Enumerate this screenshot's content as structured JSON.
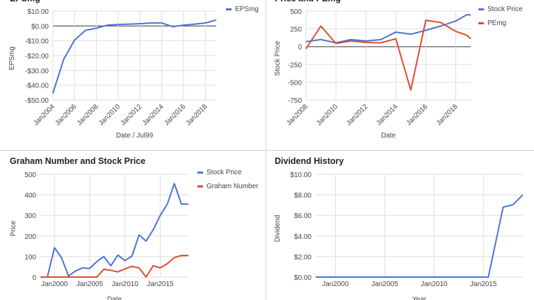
{
  "colors": {
    "blue": "#4a72d4",
    "red": "#dc4a2e",
    "grid": "#dddddd",
    "zero": "#333333",
    "text": "#444444",
    "title": "#222222"
  },
  "chart_data": [
    {
      "id": "eps",
      "type": "line",
      "title": "EPSmg",
      "xlabel": "Date / Jul99",
      "ylabel": "EPSmg",
      "ylim": [
        -50,
        10
      ],
      "xlim": [
        2004,
        2019
      ],
      "ytick_values": [
        -50,
        -40,
        -30,
        -20,
        -10,
        0,
        10
      ],
      "ytick_labels": [
        "-$50.00",
        "-$40.00",
        "-$30.00",
        "-$20.00",
        "-$10.00",
        "$0.00",
        "$10.00"
      ],
      "xtick_values": [
        2004,
        2006,
        2008,
        2010,
        2012,
        2014,
        2016,
        2018
      ],
      "xtick_labels": [
        "Jan2004",
        "Jan2006",
        "Jan2008",
        "Jan2010",
        "Jan2012",
        "Jan2014",
        "Jan2016",
        "Jan2018"
      ],
      "legend": "right",
      "series": [
        {
          "name": "EPSmg",
          "color": "blue",
          "x": [
            2004,
            2005,
            2006,
            2007,
            2008,
            2009,
            2010,
            2011,
            2012,
            2013,
            2014,
            2015,
            2016,
            2017,
            2018,
            2019
          ],
          "values": [
            -45.5,
            -22.5,
            -9.5,
            -3,
            -1.5,
            0.5,
            1,
            1.2,
            1.5,
            2,
            2,
            -0.5,
            0.5,
            1.2,
            2,
            4
          ]
        }
      ]
    },
    {
      "id": "price_pe",
      "type": "line",
      "title": "Price and PEmg",
      "xlabel": "Date",
      "ylabel": "Stock Price",
      "ylim": [
        -750,
        500
      ],
      "xlim": [
        2008,
        2019
      ],
      "ytick_values": [
        -750,
        -500,
        -250,
        0,
        250,
        500
      ],
      "ytick_labels": [
        "-750",
        "-500",
        "-250",
        "0",
        "250",
        "500"
      ],
      "xtick_values": [
        2008,
        2010,
        2012,
        2014,
        2016,
        2018
      ],
      "xtick_labels": [
        "Jan2008",
        "Jan2010",
        "Jan2012",
        "Jan2014",
        "Jan2016",
        "Jan2018"
      ],
      "legend": "right",
      "series": [
        {
          "name": "Stock Price",
          "color": "blue",
          "x": [
            2008,
            2009,
            2010,
            2011,
            2012,
            2013,
            2014,
            2015,
            2016,
            2017,
            2018,
            2018.75,
            2019
          ],
          "values": [
            70,
            100,
            55,
            100,
            80,
            100,
            205,
            175,
            230,
            290,
            360,
            450,
            445
          ]
        },
        {
          "name": "PEmg",
          "color": "red",
          "x": [
            2008,
            2009,
            2010,
            2011,
            2012,
            2013,
            2014,
            2015,
            2016,
            2017,
            2018,
            2018.75,
            2019
          ],
          "values": [
            -30,
            290,
            45,
            80,
            60,
            55,
            110,
            -610,
            370,
            340,
            215,
            160,
            110
          ]
        }
      ]
    },
    {
      "id": "graham",
      "type": "line",
      "title": "Graham Number and Stock Price",
      "xlabel": "Date",
      "ylabel": "Price",
      "ylim": [
        0,
        500
      ],
      "xlim": [
        1998,
        2019
      ],
      "ytick_values": [
        0,
        100,
        200,
        300,
        400,
        500
      ],
      "ytick_labels": [
        "0",
        "100",
        "200",
        "300",
        "400",
        "500"
      ],
      "xtick_values": [
        2000,
        2005,
        2010,
        2015
      ],
      "xtick_labels": [
        "Jan2000",
        "Jan2005",
        "Jan2010",
        "Jan2015"
      ],
      "legend": "right",
      "series": [
        {
          "name": "Stock Price",
          "color": "blue",
          "x": [
            1998,
            1999,
            2000,
            2001,
            2002,
            2003,
            2004,
            2005,
            2006,
            2007,
            2008,
            2009,
            2010,
            2011,
            2012,
            2013,
            2014,
            2015,
            2016,
            2017,
            2018,
            2019
          ],
          "values": [
            0,
            0,
            143,
            95,
            5,
            30,
            45,
            42,
            75,
            100,
            55,
            107,
            80,
            103,
            205,
            175,
            230,
            300,
            355,
            455,
            355,
            355
          ]
        },
        {
          "name": "Graham Number",
          "color": "red",
          "x": [
            1998,
            2006,
            2007,
            2008,
            2009,
            2010,
            2011,
            2012,
            2013,
            2014,
            2015,
            2016,
            2017,
            2018,
            2019
          ],
          "values": [
            0,
            0,
            38,
            33,
            25,
            40,
            52,
            45,
            0,
            55,
            45,
            65,
            95,
            105,
            105
          ]
        }
      ]
    },
    {
      "id": "dividend",
      "type": "line",
      "title": "Dividend History",
      "xlabel": "Year",
      "ylabel": "Dividend",
      "ylim": [
        0,
        10
      ],
      "xlim": [
        1998,
        2019
      ],
      "ytick_values": [
        0,
        2,
        4,
        6,
        8,
        10
      ],
      "ytick_labels": [
        "$0.00",
        "$2.00",
        "$4.00",
        "$6.00",
        "$8.00",
        "$10.00"
      ],
      "xtick_values": [
        2000,
        2005,
        2010,
        2015
      ],
      "xtick_labels": [
        "Jan2000",
        "Jan2005",
        "Jan2010",
        "Jan2015"
      ],
      "legend": "none",
      "series": [
        {
          "name": "Dividend",
          "color": "blue",
          "x": [
            1998,
            2015.5,
            2017,
            2018,
            2019
          ],
          "values": [
            0,
            0,
            6.8,
            7.05,
            8
          ]
        }
      ]
    }
  ]
}
